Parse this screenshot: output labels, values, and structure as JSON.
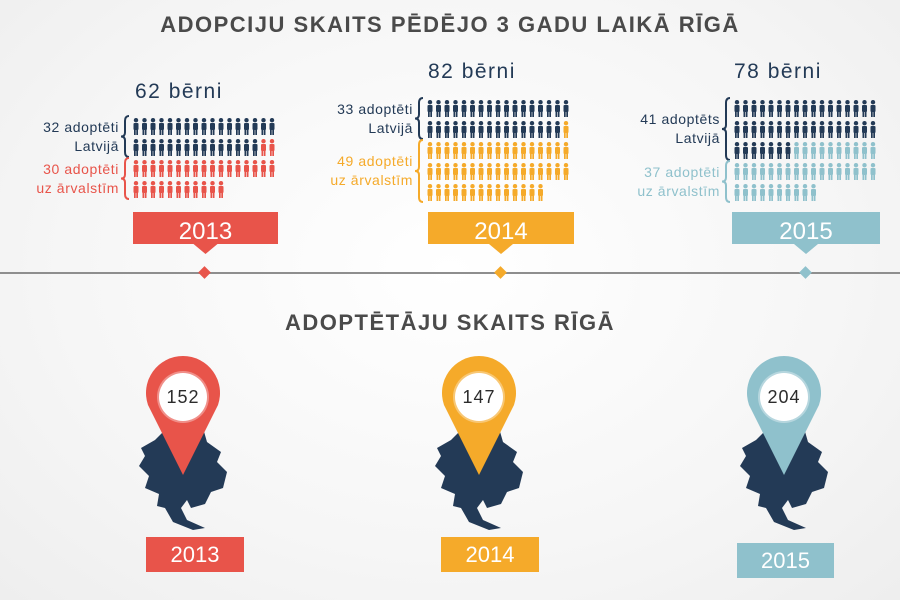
{
  "titles": {
    "adoptions": "ADOPCIJU SKAITS PĒDĒJO 3 GADU LAIKĀ RĪGĀ",
    "adopters": "ADOPTĒTĀJU SKAITS RĪGĀ"
  },
  "chart_data": [
    {
      "type": "bar",
      "title": "ADOPCIJU SKAITS PĒDĒJO 3 GADU LAIKĀ RĪGĀ",
      "categories": [
        "2013",
        "2014",
        "2015"
      ],
      "totals": [
        "62 bērni",
        "82 bērni",
        "78 bērni"
      ],
      "series": [
        {
          "name": "adoptēti Latvijā",
          "values": [
            32,
            33,
            41
          ],
          "labels": [
            "32 adoptēti\nLatvijā",
            "33 adoptēti\nLatvijā",
            "41 adoptēts\nLatvijā"
          ]
        },
        {
          "name": "adoptēti uz ārvalstīm",
          "values": [
            30,
            49,
            37
          ],
          "labels": [
            "30 adoptēti\nuz ārvalstīm",
            "49 adoptēti\nuz ārvalstīm",
            "37 adoptēti\nuz ārvalstīm"
          ]
        }
      ]
    },
    {
      "type": "bar",
      "title": "ADOPTĒTĀJU SKAITS RĪGĀ",
      "categories": [
        "2013",
        "2014",
        "2015"
      ],
      "values": [
        152,
        147,
        204
      ]
    }
  ],
  "colors": {
    "domestic": "#233a56",
    "year": [
      "#e8544a",
      "#f5aa2a",
      "#8fc1cc"
    ],
    "timeline": "#8e8e8e"
  },
  "icons": {
    "person": "person-icon",
    "pin": "map-pin-icon",
    "map": "riga-map-icon"
  }
}
